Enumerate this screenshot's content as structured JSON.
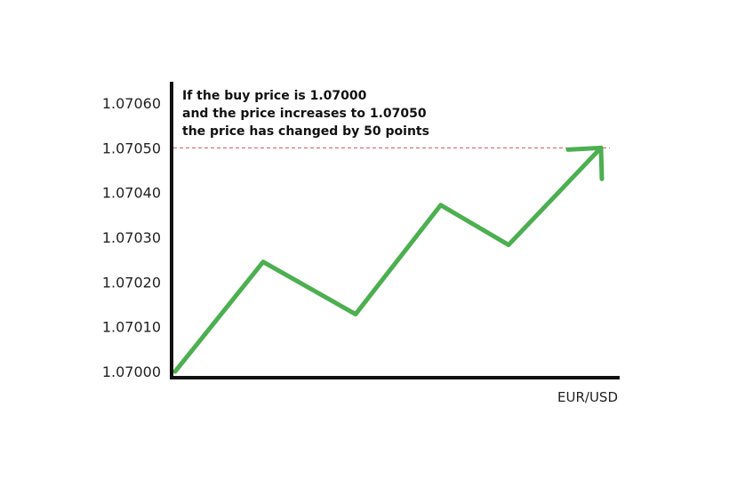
{
  "chart_data": {
    "type": "line",
    "title": "",
    "xlabel": "EUR/USD",
    "ylabel": "",
    "ylim": [
      1.07,
      1.0706
    ],
    "y_ticks": [
      "1.07000",
      "1.07010",
      "1.07020",
      "1.07030",
      "1.07040",
      "1.07050",
      "1.07060"
    ],
    "grid": false,
    "legend": "none",
    "series": [
      {
        "x": [
          0,
          1,
          2,
          3,
          4,
          5
        ],
        "values": [
          1.07,
          1.070245,
          1.070128,
          1.070372,
          1.070283,
          1.0705
        ],
        "color": "#4caf50"
      }
    ],
    "reference_line": {
      "y": 1.0705,
      "color": "#d9534f",
      "style": "dashed"
    },
    "annotation": {
      "lines": [
        "If the buy price is 1.07000",
        "and the price increases to 1.07050",
        "the price has changed by 50 points"
      ]
    }
  }
}
